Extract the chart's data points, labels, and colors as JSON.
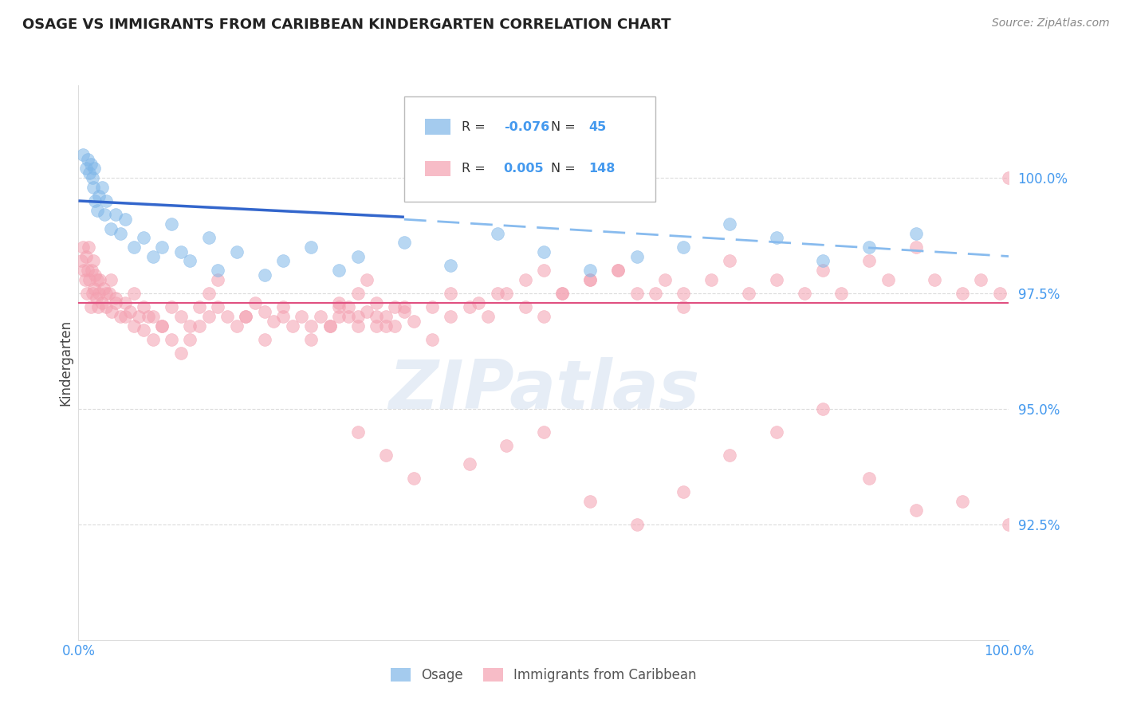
{
  "title": "OSAGE VS IMMIGRANTS FROM CARIBBEAN KINDERGARTEN CORRELATION CHART",
  "source_text": "Source: ZipAtlas.com",
  "ylabel": "Kindergarten",
  "watermark": "ZIPatlas",
  "legend_label_blue": "Osage",
  "legend_label_pink": "Immigrants from Caribbean",
  "R_blue": -0.076,
  "N_blue": 45,
  "R_pink": 0.005,
  "N_pink": 148,
  "xlim": [
    0.0,
    100.0
  ],
  "ylim": [
    90.0,
    102.0
  ],
  "yticks": [
    92.5,
    95.0,
    97.5,
    100.0
  ],
  "ytick_labels": [
    "92.5%",
    "95.0%",
    "97.5%",
    "100.0%"
  ],
  "xtick_labels": [
    "0.0%",
    "100.0%"
  ],
  "xticks": [
    0.0,
    100.0
  ],
  "blue_color": "#7EB6E8",
  "pink_color": "#F4A0B0",
  "trend_blue_solid_color": "#3366CC",
  "trend_pink_solid_color": "#E05080",
  "trend_blue_dashed_color": "#88BBEE",
  "grid_color": "#CCCCCC",
  "title_color": "#222222",
  "source_color": "#888888",
  "tick_color": "#4499EE",
  "blue_trend_x0": 0.0,
  "blue_trend_y0": 99.5,
  "blue_trend_x1": 100.0,
  "blue_trend_y1": 98.5,
  "blue_solid_end_x": 35.0,
  "blue_dashed_start_x": 35.0,
  "blue_dashed_y_at_start": 99.1,
  "blue_dashed_y_at_end": 98.3,
  "pink_trend_y": 97.3,
  "blue_scatter_x": [
    0.5,
    0.8,
    1.0,
    1.2,
    1.3,
    1.5,
    1.6,
    1.7,
    1.8,
    2.0,
    2.2,
    2.5,
    2.8,
    3.0,
    3.5,
    4.0,
    4.5,
    5.0,
    6.0,
    7.0,
    8.0,
    9.0,
    10.0,
    11.0,
    12.0,
    14.0,
    15.0,
    17.0,
    20.0,
    22.0,
    25.0,
    28.0,
    30.0,
    35.0,
    40.0,
    45.0,
    50.0,
    55.0,
    60.0,
    65.0,
    70.0,
    75.0,
    80.0,
    85.0,
    90.0
  ],
  "blue_scatter_y": [
    100.5,
    100.2,
    100.4,
    100.1,
    100.3,
    100.0,
    99.8,
    100.2,
    99.5,
    99.3,
    99.6,
    99.8,
    99.2,
    99.5,
    98.9,
    99.2,
    98.8,
    99.1,
    98.5,
    98.7,
    98.3,
    98.5,
    99.0,
    98.4,
    98.2,
    98.7,
    98.0,
    98.4,
    97.9,
    98.2,
    98.5,
    98.0,
    98.3,
    98.6,
    98.1,
    98.8,
    98.4,
    98.0,
    98.3,
    98.5,
    99.0,
    98.7,
    98.2,
    98.5,
    98.8
  ],
  "pink_scatter_x": [
    0.3,
    0.5,
    0.6,
    0.7,
    0.8,
    0.9,
    1.0,
    1.1,
    1.2,
    1.3,
    1.4,
    1.5,
    1.6,
    1.7,
    1.8,
    1.9,
    2.0,
    2.1,
    2.2,
    2.3,
    2.5,
    2.7,
    3.0,
    3.3,
    3.6,
    4.0,
    4.5,
    5.0,
    5.5,
    6.0,
    6.5,
    7.0,
    7.5,
    8.0,
    9.0,
    10.0,
    11.0,
    12.0,
    13.0,
    14.0,
    15.0,
    16.0,
    17.0,
    18.0,
    19.0,
    20.0,
    21.0,
    22.0,
    23.0,
    24.0,
    25.0,
    26.0,
    27.0,
    28.0,
    29.0,
    30.0,
    31.0,
    32.0,
    33.0,
    34.0,
    35.0,
    36.0,
    38.0,
    40.0,
    42.0,
    44.0,
    46.0,
    48.0,
    50.0,
    52.0,
    55.0,
    58.0,
    60.0,
    63.0,
    65.0,
    68.0,
    70.0,
    72.0,
    75.0,
    78.0,
    80.0,
    82.0,
    85.0,
    87.0,
    90.0,
    92.0,
    95.0,
    97.0,
    99.0,
    100.0,
    3.0,
    3.5,
    4.0,
    5.0,
    6.0,
    7.0,
    8.0,
    9.0,
    10.0,
    11.0,
    12.0,
    13.0,
    14.0,
    15.0,
    18.0,
    20.0,
    22.0,
    25.0,
    28.0,
    30.0,
    32.0,
    35.0,
    38.0,
    40.0,
    43.0,
    45.0,
    48.0,
    50.0,
    52.0,
    55.0,
    58.0,
    62.0,
    65.0,
    30.0,
    33.0,
    36.0,
    42.0,
    46.0,
    50.0,
    55.0,
    60.0,
    65.0,
    70.0,
    75.0,
    80.0,
    85.0,
    90.0,
    95.0,
    100.0,
    27.0,
    28.0,
    29.0,
    30.0,
    31.0,
    32.0,
    33.0,
    34.0
  ],
  "pink_scatter_y": [
    98.2,
    98.5,
    98.0,
    97.8,
    98.3,
    97.5,
    98.0,
    98.5,
    97.8,
    97.2,
    98.0,
    97.5,
    98.2,
    97.6,
    97.9,
    97.4,
    97.8,
    97.2,
    97.5,
    97.8,
    97.3,
    97.6,
    97.2,
    97.5,
    97.1,
    97.4,
    97.0,
    97.3,
    97.1,
    96.8,
    97.0,
    96.7,
    97.0,
    96.5,
    96.8,
    96.5,
    96.2,
    96.5,
    96.8,
    97.0,
    97.2,
    97.0,
    96.8,
    97.0,
    97.3,
    97.1,
    96.9,
    97.2,
    96.8,
    97.0,
    96.5,
    97.0,
    96.8,
    97.2,
    97.0,
    96.8,
    97.1,
    97.3,
    97.0,
    96.8,
    97.1,
    96.9,
    97.2,
    97.5,
    97.2,
    97.0,
    97.5,
    97.8,
    98.0,
    97.5,
    97.8,
    98.0,
    97.5,
    97.8,
    97.5,
    97.8,
    98.2,
    97.5,
    97.8,
    97.5,
    98.0,
    97.5,
    98.2,
    97.8,
    98.5,
    97.8,
    97.5,
    97.8,
    97.5,
    100.0,
    97.5,
    97.8,
    97.3,
    97.0,
    97.5,
    97.2,
    97.0,
    96.8,
    97.2,
    97.0,
    96.8,
    97.2,
    97.5,
    97.8,
    97.0,
    96.5,
    97.0,
    96.8,
    97.3,
    97.0,
    96.8,
    97.2,
    96.5,
    97.0,
    97.3,
    97.5,
    97.2,
    97.0,
    97.5,
    97.8,
    98.0,
    97.5,
    97.2,
    94.5,
    94.0,
    93.5,
    93.8,
    94.2,
    94.5,
    93.0,
    92.5,
    93.2,
    94.0,
    94.5,
    95.0,
    93.5,
    92.8,
    93.0,
    92.5,
    96.8,
    97.0,
    97.2,
    97.5,
    97.8,
    97.0,
    96.8,
    97.2
  ]
}
